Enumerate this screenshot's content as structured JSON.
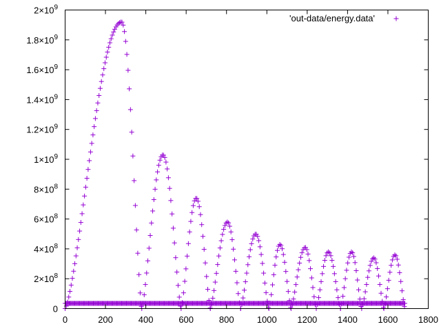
{
  "chart_data": {
    "type": "scatter",
    "xlim": [
      0,
      1800
    ],
    "ylim": [
      0,
      2000000000
    ],
    "x_ticks": [
      {
        "value": 0,
        "label": "0"
      },
      {
        "value": 200,
        "label": "200"
      },
      {
        "value": 400,
        "label": "400"
      },
      {
        "value": 600,
        "label": "600"
      },
      {
        "value": 800,
        "label": "800"
      },
      {
        "value": 1000,
        "label": "1000"
      },
      {
        "value": 1200,
        "label": "1200"
      },
      {
        "value": 1400,
        "label": "1400"
      },
      {
        "value": 1600,
        "label": "1600"
      },
      {
        "value": 1800,
        "label": "1800"
      }
    ],
    "y_ticks": [
      {
        "value": 0,
        "base": "0",
        "exp": ""
      },
      {
        "value": 200000000,
        "base": "2×10",
        "exp": "8"
      },
      {
        "value": 400000000,
        "base": "4×10",
        "exp": "8"
      },
      {
        "value": 600000000,
        "base": "6×10",
        "exp": "8"
      },
      {
        "value": 800000000,
        "base": "8×10",
        "exp": "8"
      },
      {
        "value": 1000000000,
        "base": "1×10",
        "exp": "9"
      },
      {
        "value": 1200000000,
        "base": "1.2×10",
        "exp": "9"
      },
      {
        "value": 1400000000,
        "base": "1.4×10",
        "exp": "9"
      },
      {
        "value": 1600000000,
        "base": "1.6×10",
        "exp": "9"
      },
      {
        "value": 1800000000,
        "base": "1.8×10",
        "exp": "9"
      },
      {
        "value": 2000000000,
        "base": "2×10",
        "exp": "9"
      }
    ],
    "legend": {
      "position": "top-right",
      "entries": [
        "'out-data/energy.data'"
      ]
    },
    "marker": "+",
    "grid": false,
    "series": [
      {
        "name": "'out-data/energy.data'",
        "color": "#9400d3",
        "baseline": 35000000,
        "baseline_x_range": [
          0,
          1685
        ],
        "peaks": [
          {
            "start": 0,
            "peak_x": 280,
            "peak_y": 1920000000,
            "end": 380
          },
          {
            "start": 380,
            "peak_x": 485,
            "peak_y": 1030000000,
            "end": 575
          },
          {
            "start": 575,
            "peak_x": 650,
            "peak_y": 740000000,
            "end": 720
          },
          {
            "start": 720,
            "peak_x": 805,
            "peak_y": 580000000,
            "end": 870
          },
          {
            "start": 870,
            "peak_x": 945,
            "peak_y": 500000000,
            "end": 1010
          },
          {
            "start": 1010,
            "peak_x": 1065,
            "peak_y": 430000000,
            "end": 1120
          },
          {
            "start": 1120,
            "peak_x": 1190,
            "peak_y": 410000000,
            "end": 1245
          },
          {
            "start": 1245,
            "peak_x": 1305,
            "peak_y": 380000000,
            "end": 1365
          },
          {
            "start": 1365,
            "peak_x": 1420,
            "peak_y": 380000000,
            "end": 1470
          },
          {
            "start": 1470,
            "peak_x": 1530,
            "peak_y": 340000000,
            "end": 1580
          },
          {
            "start": 1580,
            "peak_x": 1635,
            "peak_y": 360000000,
            "end": 1685
          }
        ]
      }
    ]
  }
}
